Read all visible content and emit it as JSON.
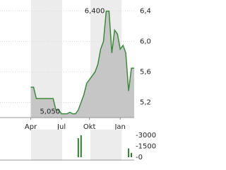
{
  "chart_data": [
    {
      "type": "area",
      "color": "#3b8a3b",
      "fill": "#c6c6c6",
      "grid": true,
      "xlim": [
        0,
        48
      ],
      "ylim": [
        5.0,
        6.5
      ],
      "xticks": [
        {
          "value": 11,
          "label": "Apr"
        },
        {
          "value": 22,
          "label": "Jul"
        },
        {
          "value": 32,
          "label": "Okt"
        },
        {
          "value": 43,
          "label": "Jan"
        }
      ],
      "yticks": [
        {
          "value": 5.2,
          "label": "5,2"
        },
        {
          "value": 5.6,
          "label": "5,6"
        },
        {
          "value": 6.0,
          "label": "6,0"
        },
        {
          "value": 6.4,
          "label": "6,4"
        }
      ],
      "values": [
        null,
        null,
        null,
        null,
        null,
        null,
        null,
        null,
        null,
        null,
        null,
        5.4,
        5.4,
        5.25,
        5.25,
        5.25,
        5.25,
        5.25,
        5.25,
        5.25,
        5.1,
        5.1,
        5.05,
        5.05,
        5.05,
        5.07,
        5.05,
        5.05,
        5.1,
        5.2,
        5.3,
        5.45,
        5.5,
        5.55,
        5.6,
        5.7,
        5.9,
        6.0,
        6.4,
        6.4,
        5.85,
        6.15,
        6.1,
        5.9,
        5.95,
        5.85,
        5.35,
        5.65,
        5.65
      ],
      "annotations": [
        {
          "value": 6.4,
          "label": "6,400"
        },
        {
          "value": 5.05,
          "label": "5,050"
        }
      ]
    },
    {
      "type": "bar",
      "color": "#2e7d2e",
      "xlim": [
        0,
        48
      ],
      "ylim": [
        0,
        3000
      ],
      "yticks": [
        {
          "value": 0,
          "label": "-0"
        },
        {
          "value": 1500,
          "label": "-1500"
        },
        {
          "value": 3000,
          "label": "-3000"
        }
      ],
      "x": [
        28,
        29,
        46,
        47
      ],
      "values": [
        2600,
        3000,
        1200,
        600
      ]
    }
  ]
}
